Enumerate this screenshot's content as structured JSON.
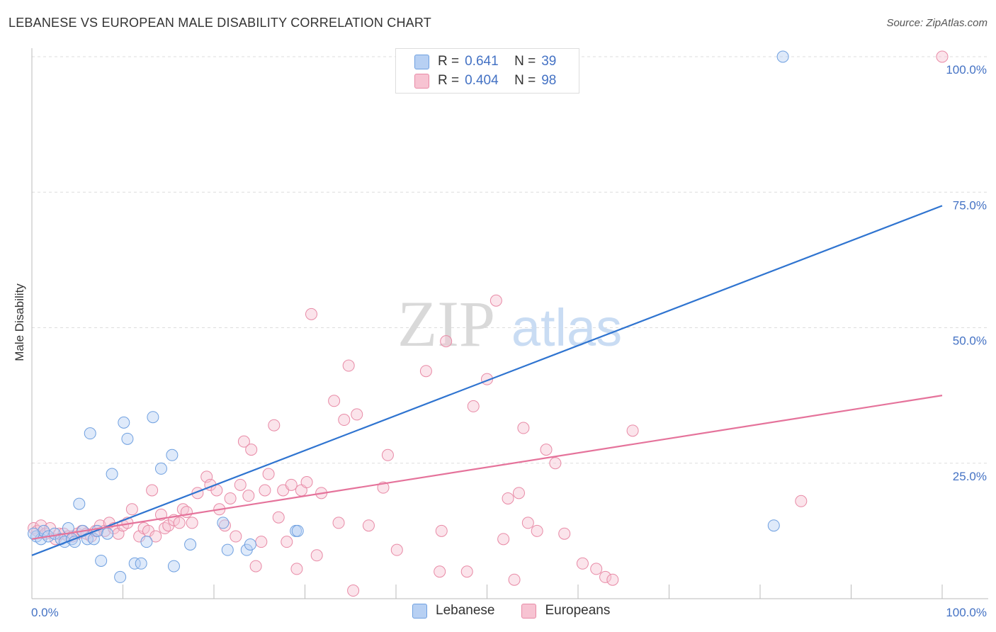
{
  "title": "LEBANESE VS EUROPEAN MALE DISABILITY CORRELATION CHART",
  "source": "Source: ZipAtlas.com",
  "colors": {
    "blue": "#6fa0e0",
    "blue_fill": "#b7d0f3",
    "blue_line": "#2f74d0",
    "pink": "#e88aa6",
    "pink_fill": "#f7c3d2",
    "pink_line": "#e5739b",
    "accent_text": "#4472c4"
  },
  "legend": {
    "rows": [
      {
        "r_label": "R =",
        "r_value": "0.641",
        "n_label": "N =",
        "n_value": "39"
      },
      {
        "r_label": "R =",
        "r_value": "0.404",
        "n_label": "N =",
        "n_value": "98"
      }
    ]
  },
  "bottom_legend": [
    "Lebanese",
    "Europeans"
  ],
  "watermark": {
    "zip": "ZIP",
    "atlas": "atlas"
  },
  "chart_data": {
    "type": "scatter",
    "title": "LEBANESE VS EUROPEAN MALE DISABILITY CORRELATION CHART",
    "xlabel": "",
    "ylabel": "Male Disability",
    "xlim": [
      0,
      100
    ],
    "ylim": [
      0,
      100
    ],
    "x_tick_labels": [
      "0.0%",
      "100.0%"
    ],
    "y_tick_labels": [
      "100.0%",
      "75.0%",
      "50.0%",
      "25.0%"
    ],
    "y_ticks": [
      100,
      75,
      50,
      25
    ],
    "series": [
      {
        "name": "Lebanese",
        "r": 0.641,
        "n": 39,
        "trend": {
          "x": [
            0,
            100
          ],
          "y": [
            8.0,
            72.5
          ]
        },
        "points": [
          [
            0.5,
            11.5
          ],
          [
            1.0,
            11.0
          ],
          [
            1.3,
            12.5
          ],
          [
            1.8,
            11.5
          ],
          [
            2.5,
            12.0
          ],
          [
            3.2,
            11.0
          ],
          [
            3.6,
            10.5
          ],
          [
            4.0,
            13.0
          ],
          [
            4.4,
            11.0
          ],
          [
            4.7,
            10.5
          ],
          [
            5.2,
            17.5
          ],
          [
            5.6,
            12.5
          ],
          [
            6.1,
            11.0
          ],
          [
            6.4,
            30.5
          ],
          [
            6.8,
            11.0
          ],
          [
            7.2,
            12.5
          ],
          [
            7.6,
            7.0
          ],
          [
            8.3,
            12.0
          ],
          [
            8.8,
            23.0
          ],
          [
            9.7,
            4.0
          ],
          [
            10.1,
            32.5
          ],
          [
            10.5,
            29.5
          ],
          [
            11.3,
            6.5
          ],
          [
            12.0,
            6.5
          ],
          [
            12.6,
            10.5
          ],
          [
            13.3,
            33.5
          ],
          [
            14.2,
            24.0
          ],
          [
            15.4,
            26.5
          ],
          [
            15.6,
            6.0
          ],
          [
            17.4,
            10.0
          ],
          [
            21.0,
            14.0
          ],
          [
            21.5,
            9.0
          ],
          [
            23.6,
            9.0
          ],
          [
            24.0,
            10.0
          ],
          [
            29.0,
            12.5
          ],
          [
            29.2,
            12.5
          ],
          [
            81.5,
            13.5
          ],
          [
            82.5,
            100.0
          ],
          [
            0.2,
            12.0
          ]
        ]
      },
      {
        "name": "Europeans",
        "r": 0.404,
        "n": 98,
        "trend": {
          "x": [
            0,
            100
          ],
          "y": [
            11.0,
            37.5
          ]
        },
        "points": [
          [
            0.2,
            13.0
          ],
          [
            0.6,
            12.5
          ],
          [
            1.0,
            13.5
          ],
          [
            1.5,
            12.0
          ],
          [
            2.0,
            13.0
          ],
          [
            2.6,
            11.0
          ],
          [
            3.0,
            12.0
          ],
          [
            3.5,
            12.0
          ],
          [
            4.0,
            11.5
          ],
          [
            4.5,
            11.5
          ],
          [
            5.0,
            12.0
          ],
          [
            5.5,
            12.5
          ],
          [
            6.0,
            12.0
          ],
          [
            6.5,
            11.5
          ],
          [
            7.0,
            12.5
          ],
          [
            7.5,
            13.5
          ],
          [
            8.0,
            12.5
          ],
          [
            8.5,
            14.0
          ],
          [
            9.0,
            13.0
          ],
          [
            9.5,
            12.0
          ],
          [
            10.0,
            13.5
          ],
          [
            10.5,
            14.0
          ],
          [
            11.0,
            16.5
          ],
          [
            11.8,
            11.5
          ],
          [
            12.3,
            13.0
          ],
          [
            12.8,
            12.5
          ],
          [
            13.2,
            20.0
          ],
          [
            13.6,
            11.5
          ],
          [
            14.2,
            15.5
          ],
          [
            14.6,
            13.0
          ],
          [
            15.0,
            13.5
          ],
          [
            15.6,
            14.5
          ],
          [
            16.2,
            14.0
          ],
          [
            16.6,
            16.5
          ],
          [
            17.0,
            16.0
          ],
          [
            17.6,
            14.0
          ],
          [
            18.2,
            19.5
          ],
          [
            19.2,
            22.5
          ],
          [
            19.6,
            21.0
          ],
          [
            20.3,
            20.0
          ],
          [
            20.6,
            16.5
          ],
          [
            21.2,
            13.5
          ],
          [
            21.8,
            18.5
          ],
          [
            22.4,
            11.5
          ],
          [
            22.9,
            21.0
          ],
          [
            23.3,
            29.0
          ],
          [
            23.8,
            19.0
          ],
          [
            24.1,
            27.5
          ],
          [
            24.6,
            6.0
          ],
          [
            25.2,
            10.5
          ],
          [
            25.6,
            20.0
          ],
          [
            26.0,
            23.0
          ],
          [
            26.6,
            32.0
          ],
          [
            27.1,
            15.0
          ],
          [
            27.6,
            20.0
          ],
          [
            28.0,
            10.5
          ],
          [
            28.5,
            21.0
          ],
          [
            29.1,
            5.5
          ],
          [
            29.6,
            20.0
          ],
          [
            30.2,
            21.5
          ],
          [
            30.7,
            52.5
          ],
          [
            31.3,
            8.0
          ],
          [
            31.8,
            19.5
          ],
          [
            33.2,
            36.5
          ],
          [
            33.7,
            14.0
          ],
          [
            34.3,
            33.0
          ],
          [
            34.8,
            43.0
          ],
          [
            35.3,
            1.5
          ],
          [
            35.7,
            34.0
          ],
          [
            37.0,
            13.5
          ],
          [
            38.6,
            20.5
          ],
          [
            39.1,
            26.5
          ],
          [
            40.1,
            9.0
          ],
          [
            43.3,
            42.0
          ],
          [
            44.8,
            5.0
          ],
          [
            45.5,
            47.5
          ],
          [
            47.8,
            5.0
          ],
          [
            48.5,
            35.5
          ],
          [
            50.0,
            40.5
          ],
          [
            51.0,
            55.0
          ],
          [
            51.8,
            11.0
          ],
          [
            52.3,
            18.5
          ],
          [
            53.0,
            3.5
          ],
          [
            53.5,
            19.5
          ],
          [
            54.0,
            31.5
          ],
          [
            54.5,
            14.0
          ],
          [
            56.5,
            27.5
          ],
          [
            57.5,
            25.0
          ],
          [
            58.5,
            12.0
          ],
          [
            60.5,
            6.5
          ],
          [
            62.0,
            5.5
          ],
          [
            63.0,
            4.0
          ],
          [
            63.8,
            3.5
          ],
          [
            66.0,
            31.0
          ],
          [
            84.5,
            18.0
          ],
          [
            100.0,
            100.0
          ],
          [
            55.5,
            12.5
          ],
          [
            45.0,
            12.5
          ]
        ]
      }
    ]
  }
}
